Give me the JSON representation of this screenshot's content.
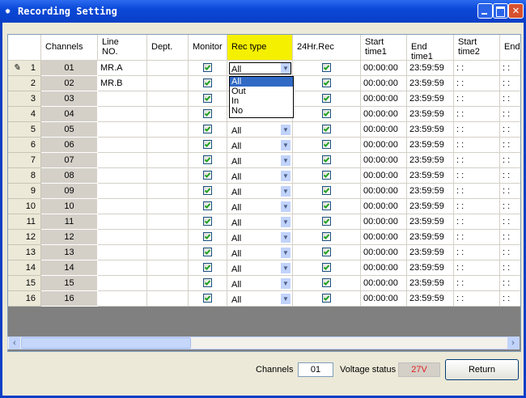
{
  "window": {
    "title": "Recording Setting"
  },
  "table": {
    "headers": [
      "Channels",
      "Line\nNO.",
      "Dept.",
      "Monitor",
      "Rec type",
      "24Hr.Rec",
      "Start\ntime1",
      "End time1",
      "Start\ntime2",
      "End"
    ],
    "rows": [
      {
        "no": "1",
        "channel": "01",
        "line": "MR.A",
        "monitor": true,
        "rec_type": "All",
        "rec24": true,
        "start1": "00:00:00",
        "end1": "23:59:59",
        "start2": ": :",
        "end2": ": :"
      },
      {
        "no": "2",
        "channel": "02",
        "line": "MR.B",
        "monitor": true,
        "rec24": true,
        "start1": "00:00:00",
        "end1": "23:59:59",
        "start2": ": :",
        "end2": ": :"
      },
      {
        "no": "3",
        "channel": "03",
        "monitor": true,
        "rec24": true,
        "start1": "00:00:00",
        "end1": "23:59:59",
        "start2": ": :",
        "end2": ": :"
      },
      {
        "no": "4",
        "channel": "04",
        "monitor": true,
        "rec24": true,
        "start1": "00:00:00",
        "end1": "23:59:59",
        "start2": ": :",
        "end2": ": :"
      },
      {
        "no": "5",
        "channel": "05",
        "monitor": true,
        "rec_type": "All",
        "rec24": true,
        "start1": "00:00:00",
        "end1": "23:59:59",
        "start2": ": :",
        "end2": ": :"
      },
      {
        "no": "6",
        "channel": "06",
        "monitor": true,
        "rec_type": "All",
        "rec24": true,
        "start1": "00:00:00",
        "end1": "23:59:59",
        "start2": ": :",
        "end2": ": :"
      },
      {
        "no": "7",
        "channel": "07",
        "monitor": true,
        "rec_type": "All",
        "rec24": true,
        "start1": "00:00:00",
        "end1": "23:59:59",
        "start2": ": :",
        "end2": ": :"
      },
      {
        "no": "8",
        "channel": "08",
        "monitor": true,
        "rec_type": "All",
        "rec24": true,
        "start1": "00:00:00",
        "end1": "23:59:59",
        "start2": ": :",
        "end2": ": :"
      },
      {
        "no": "9",
        "channel": "09",
        "monitor": true,
        "rec_type": "All",
        "rec24": true,
        "start1": "00:00:00",
        "end1": "23:59:59",
        "start2": ": :",
        "end2": ": :"
      },
      {
        "no": "10",
        "channel": "10",
        "monitor": true,
        "rec_type": "All",
        "rec24": true,
        "start1": "00:00:00",
        "end1": "23:59:59",
        "start2": ": :",
        "end2": ": :"
      },
      {
        "no": "11",
        "channel": "11",
        "monitor": true,
        "rec_type": "All",
        "rec24": true,
        "start1": "00:00:00",
        "end1": "23:59:59",
        "start2": ": :",
        "end2": ": :"
      },
      {
        "no": "12",
        "channel": "12",
        "monitor": true,
        "rec_type": "All",
        "rec24": true,
        "start1": "00:00:00",
        "end1": "23:59:59",
        "start2": ": :",
        "end2": ": :"
      },
      {
        "no": "13",
        "channel": "13",
        "monitor": true,
        "rec_type": "All",
        "rec24": true,
        "start1": "00:00:00",
        "end1": "23:59:59",
        "start2": ": :",
        "end2": ": :"
      },
      {
        "no": "14",
        "channel": "14",
        "monitor": true,
        "rec_type": "All",
        "rec24": true,
        "start1": "00:00:00",
        "end1": "23:59:59",
        "start2": ": :",
        "end2": ": :"
      },
      {
        "no": "15",
        "channel": "15",
        "monitor": true,
        "rec_type": "All",
        "rec24": true,
        "start1": "00:00:00",
        "end1": "23:59:59",
        "start2": ": :",
        "end2": ": :"
      },
      {
        "no": "16",
        "channel": "16",
        "monitor": true,
        "rec_type": "All",
        "rec24": true,
        "start1": "00:00:00",
        "end1": "23:59:59",
        "start2": ": :",
        "end2": ": :"
      }
    ]
  },
  "dropdown": {
    "options": [
      "All",
      "Out",
      "In",
      "No"
    ]
  },
  "footer": {
    "channels_label": "Channels",
    "channels_value": "01",
    "voltage_label": "Voltage status",
    "voltage_value": "27V",
    "return_button": "Return"
  }
}
